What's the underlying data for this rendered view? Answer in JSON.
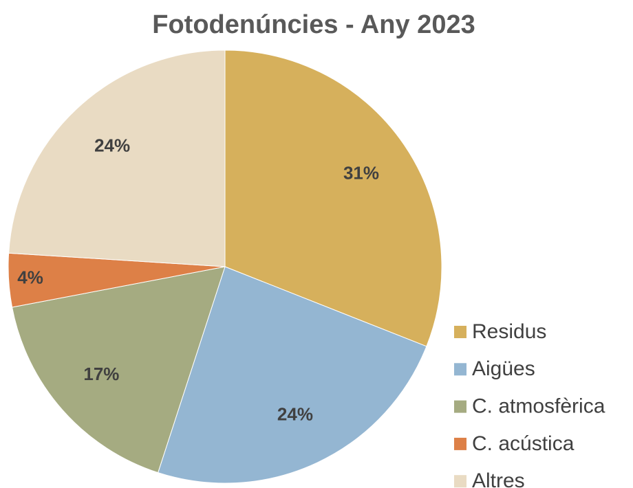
{
  "chart_data": {
    "type": "pie",
    "title": "Fotodenúncies - Any 2023",
    "categories": [
      "Residus",
      "Aigües",
      "C. atmosfèrica",
      "C. acústica",
      "Altres"
    ],
    "values": [
      31,
      24,
      17,
      4,
      24
    ],
    "value_labels": [
      "31%",
      "24%",
      "17%",
      "4%",
      "24%"
    ],
    "colors": [
      "#d6b05c",
      "#94b6d2",
      "#a5ab81",
      "#dd8047",
      "#e9dbc3"
    ],
    "legend": "right"
  }
}
